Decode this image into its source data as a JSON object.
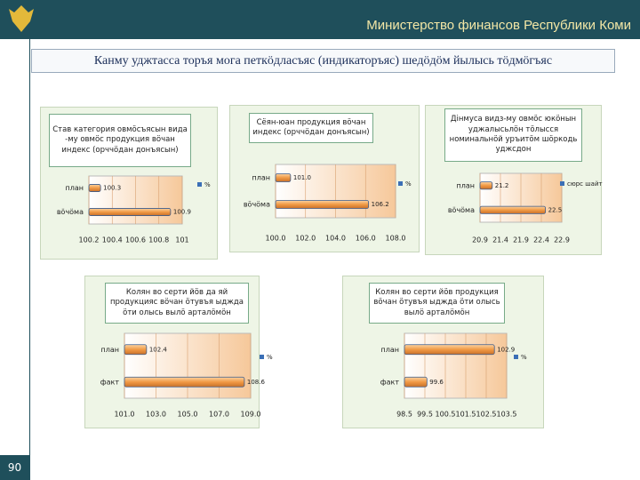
{
  "header": {
    "title": "Министерство финансов Республики Коми",
    "subtitle": "Канму уджтасса торъя мога петкӧдласъяс (индикаторъяс) шедӧдӧм йылысь тӧдмӧгъяс",
    "page": "90"
  },
  "chart_data": [
    {
      "type": "bar",
      "orientation": "horizontal",
      "title": "Став категория овмӧсъясын вида -му овмӧс продукция вӧчан индекс (орччӧдан донъясын)",
      "categories": [
        "план",
        "вӧчӧма"
      ],
      "series": [
        {
          "name": "%",
          "color": "#f0a050",
          "values": [
            100.3,
            100.9
          ]
        }
      ],
      "xlim": [
        100.2,
        101
      ],
      "xticks": [
        100.2,
        100.4,
        100.6,
        100.8,
        101
      ]
    },
    {
      "type": "bar",
      "orientation": "horizontal",
      "title": "Сёян-юан продукция вӧчан индекс (орччӧдан донъясын)",
      "categories": [
        "план",
        "вӧчӧма"
      ],
      "series": [
        {
          "name": "%",
          "color": "#f0a050",
          "values": [
            101,
            106.2
          ],
          "value_labels": [
            "101.0",
            "106.2"
          ]
        }
      ],
      "xlim": [
        100,
        108
      ],
      "xticks": [
        {
          "value": 100,
          "label": "100.0"
        },
        {
          "value": 102,
          "label": "102.0"
        },
        {
          "value": 104,
          "label": "104.0"
        },
        {
          "value": 106,
          "label": "106.0"
        },
        {
          "value": 108,
          "label": "108.0"
        }
      ]
    },
    {
      "type": "bar",
      "orientation": "horizontal",
      "title": "Дінмуса видз-му овмӧс юкӧнын уджалысьлӧн тӧлысся номинальнӧй уръитӧм шӧркодь уджсдон",
      "categories": [
        "план",
        "вӧчӧма"
      ],
      "series": [
        {
          "name": "сюрс шайт",
          "color": "#f0a050",
          "values": [
            21.2,
            22.5
          ]
        }
      ],
      "xlim": [
        20.9,
        22.9
      ],
      "xticks": [
        20.9,
        21.4,
        21.9,
        22.4,
        22.9
      ]
    },
    {
      "type": "bar",
      "orientation": "horizontal",
      "title": "Колян во серти йӧв да яй продукцияс вӧчан ӧтувъя ыджда ӧти олысь вылӧ арталӧмӧн",
      "categories": [
        "план",
        "факт"
      ],
      "series": [
        {
          "name": "%",
          "color": "#f0a050",
          "values": [
            102.4,
            108.6
          ]
        }
      ],
      "xlim": [
        101,
        109
      ],
      "xticks": [
        {
          "value": 101,
          "label": "101.0"
        },
        {
          "value": 103,
          "label": "103.0"
        },
        {
          "value": 105,
          "label": "105.0"
        },
        {
          "value": 107,
          "label": "107.0"
        },
        {
          "value": 109,
          "label": "109.0"
        }
      ]
    },
    {
      "type": "bar",
      "orientation": "horizontal",
      "title": "Колян во серти йӧв продукция вӧчан ӧтувъя ыджда ӧти олысь вылӧ арталӧмӧн",
      "categories": [
        "план",
        "факт"
      ],
      "series": [
        {
          "name": "%",
          "color": "#f0a050",
          "values": [
            102.9,
            99.6
          ]
        }
      ],
      "xlim": [
        98.5,
        103.5
      ],
      "xticks": [
        98.5,
        99.5,
        100.5,
        101.5,
        102.5,
        103.5
      ]
    }
  ]
}
